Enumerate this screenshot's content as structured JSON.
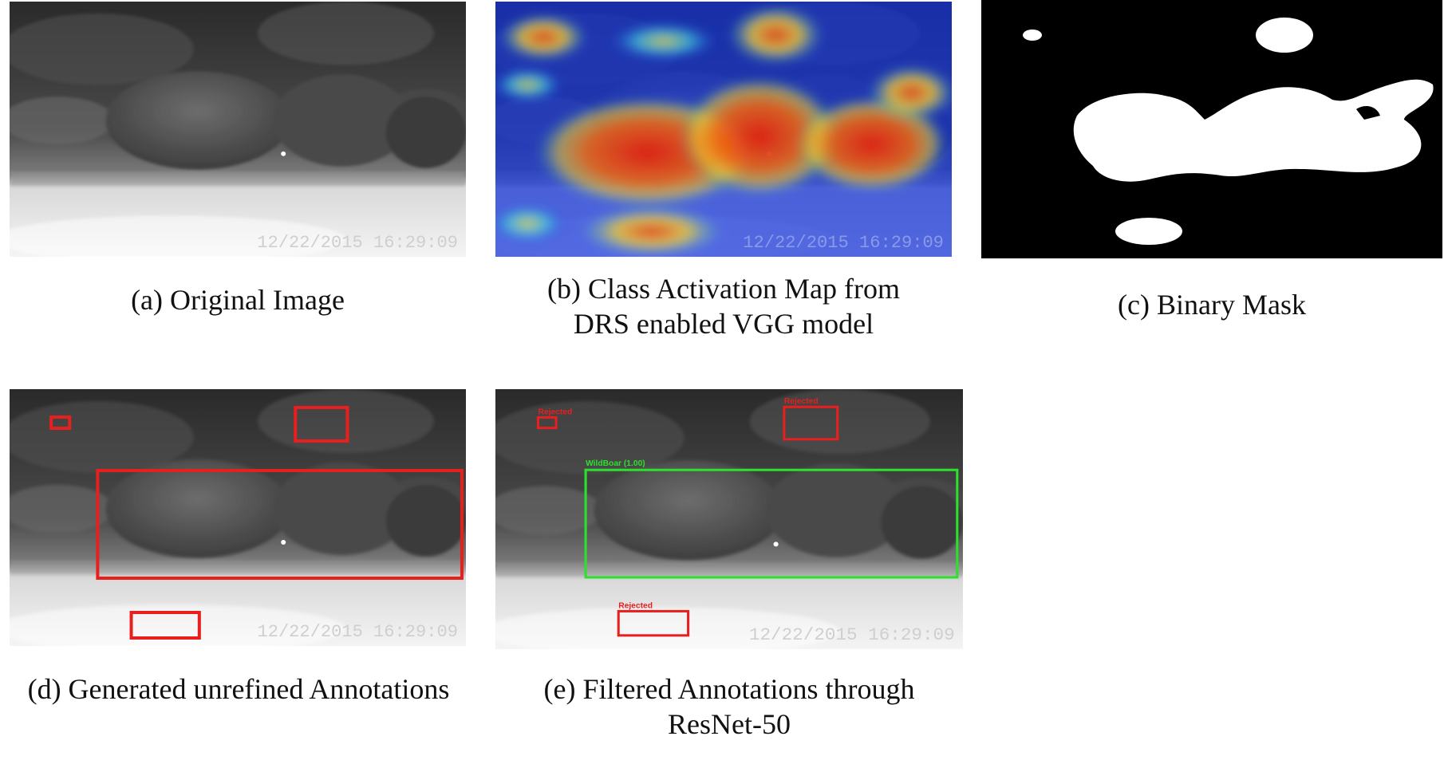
{
  "figure": {
    "timestamp": "12/22/2015  16:29:09",
    "panels": {
      "a": {
        "caption": "(a) Original Image"
      },
      "b": {
        "caption_line1": "(b) Class Activation Map from",
        "caption_line2": "DRS enabled VGG model"
      },
      "c": {
        "caption": "(c) Binary Mask"
      },
      "d": {
        "caption": "(d) Generated unrefined Annotations"
      },
      "e": {
        "caption_line1": "(e) Filtered Annotations through",
        "caption_line2": "ResNet-50",
        "label_rejected": "Rejected",
        "label_accepted": "WildBoar  (1.00)"
      }
    },
    "colors": {
      "rejected_box": "#e81f1f",
      "accepted_box": "#2ee02e",
      "mask_bg": "#000000",
      "mask_fg": "#ffffff"
    }
  }
}
